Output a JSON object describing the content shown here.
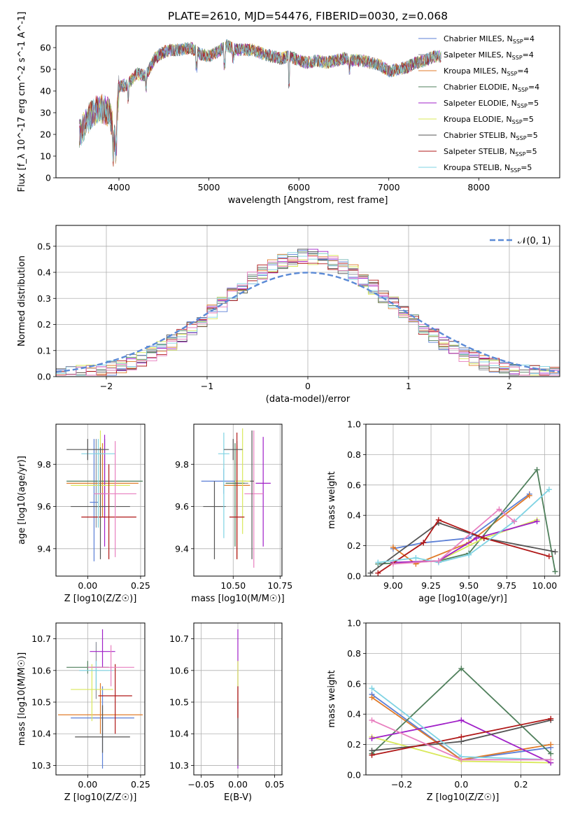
{
  "title": "PLATE=2610, MJD=54476, FIBERID=0030, z=0.068",
  "colors": {
    "Chabrier MILES": "#5b7fd6",
    "Salpeter MILES": "#8a8f9a",
    "Kroupa MILES": "#e07b2a",
    "Chabrier ELODIE": "#4f7f5b",
    "Salpeter ELODIE": "#a020c8",
    "Kroupa ELODIE": "#d9e85a",
    "Chabrier STELIB": "#555555",
    "Salpeter STELIB": "#b01818",
    "Kroupa STELIB": "#7fd3e3",
    "pink": "#e87fbf",
    "normal_curve": "#5b8ad6"
  },
  "chart_data": [
    {
      "id": "spectrum",
      "type": "line",
      "xlabel": "wavelength [Angstrom, rest frame]",
      "ylabel": "Flux [f_λ 10^-17 erg cm^-2 s^-1 A^-1]",
      "xlim": [
        3300,
        8900
      ],
      "ylim": [
        0,
        70
      ],
      "xticks": [
        "4000",
        "5000",
        "6000",
        "7000",
        "8000"
      ],
      "yticks": [
        "0",
        "10",
        "20",
        "30",
        "40",
        "50",
        "60"
      ],
      "legend": "top-right",
      "x_start": 3560,
      "x_end": 7580,
      "continuum": [
        [
          3560,
          20
        ],
        [
          3700,
          30
        ],
        [
          3800,
          32
        ],
        [
          3900,
          30
        ],
        [
          3960,
          16
        ],
        [
          4000,
          42
        ],
        [
          4100,
          43
        ],
        [
          4200,
          48
        ],
        [
          4300,
          47
        ],
        [
          4400,
          55
        ],
        [
          4500,
          58
        ],
        [
          4600,
          59
        ],
        [
          4700,
          59
        ],
        [
          4800,
          60
        ],
        [
          4900,
          57
        ],
        [
          5000,
          56
        ],
        [
          5100,
          58
        ],
        [
          5200,
          61
        ],
        [
          5300,
          59
        ],
        [
          5400,
          59
        ],
        [
          5500,
          59
        ],
        [
          5600,
          57
        ],
        [
          5700,
          56
        ],
        [
          5800,
          55
        ],
        [
          5900,
          56
        ],
        [
          6000,
          54
        ],
        [
          6100,
          53
        ],
        [
          6200,
          54
        ],
        [
          6300,
          53
        ],
        [
          6400,
          54
        ],
        [
          6500,
          55
        ],
        [
          6600,
          54
        ],
        [
          6700,
          54
        ],
        [
          6800,
          53
        ],
        [
          6900,
          52
        ],
        [
          7000,
          49
        ],
        [
          7100,
          50
        ],
        [
          7200,
          51
        ],
        [
          7300,
          53
        ],
        [
          7400,
          54
        ],
        [
          7500,
          56
        ],
        [
          7580,
          56
        ]
      ],
      "absorption": [
        [
          3934,
          9
        ],
        [
          3968,
          8
        ],
        [
          4102,
          6
        ],
        [
          4300,
          5
        ],
        [
          4861,
          7
        ],
        [
          5175,
          8
        ],
        [
          5270,
          4
        ],
        [
          5890,
          12
        ],
        [
          6563,
          4
        ]
      ],
      "series": [
        {
          "name": "Chabrier MILES, N_SSP=4"
        },
        {
          "name": "Salpeter MILES, N_SSP=4"
        },
        {
          "name": "Kroupa MILES, N_SSP=4"
        },
        {
          "name": "Chabrier ELODIE, N_SSP=4"
        },
        {
          "name": "Salpeter ELODIE, N_SSP=5"
        },
        {
          "name": "Kroupa ELODIE, N_SSP=5"
        },
        {
          "name": "Chabrier STELIB, N_SSP=5"
        },
        {
          "name": "Salpeter STELIB, N_SSP=5"
        },
        {
          "name": "Kroupa STELIB, N_SSP=5"
        }
      ]
    },
    {
      "id": "residuals",
      "type": "line",
      "xlabel": "(data-model)/error",
      "ylabel": "Normed distribution",
      "xlim": [
        -2.5,
        2.5
      ],
      "ylim": [
        0,
        0.58
      ],
      "xticks": [
        "−2",
        "−1",
        "0",
        "1",
        "2"
      ],
      "yticks": [
        "0.0",
        "0.1",
        "0.2",
        "0.3",
        "0.4",
        "0.5"
      ],
      "grid": true,
      "legend": "top-right",
      "normal_label": "𝒩(0, 1)",
      "bin_width": 0.1
    },
    {
      "id": "z-age",
      "type": "scatter",
      "xlabel": "Z [log10(Z/Z☉)]",
      "ylabel": "age [log10(age/yr)]",
      "xlim": [
        -0.15,
        0.27
      ],
      "ylim": [
        9.27,
        9.99
      ],
      "xticks": [
        "0.00",
        "0.25"
      ],
      "yticks": [
        "9.4",
        "9.6",
        "9.8"
      ],
      "grid": true,
      "points": [
        {
          "x": 0.03,
          "xerr": 0.02,
          "y": 9.62,
          "yerr": [
            0.28,
            0.3
          ],
          "color": "Chabrier MILES"
        },
        {
          "x": 0.04,
          "xerr": 0.03,
          "y": 9.7,
          "yerr": [
            0.2,
            0.22
          ],
          "color": "Salpeter MILES"
        },
        {
          "x": 0.07,
          "xerr": 0.17,
          "y": 9.71,
          "yerr": [
            0.16,
            0.19
          ],
          "color": "Kroupa MILES"
        },
        {
          "x": 0.08,
          "xerr": 0.18,
          "y": 9.72,
          "yerr": [
            0.17,
            0.2
          ],
          "color": "Chabrier ELODIE"
        },
        {
          "x": 0.08,
          "xerr": 0.02,
          "y": 9.66,
          "yerr": [
            0.25,
            0.28
          ],
          "color": "Salpeter ELODIE"
        },
        {
          "x": 0.06,
          "xerr": 0.14,
          "y": 9.7,
          "yerr": [
            0.2,
            0.26
          ],
          "color": "Kroupa ELODIE"
        },
        {
          "x": 0.06,
          "xerr": 0.14,
          "y": 9.6,
          "yerr": [
            0.25,
            0.28
          ],
          "color": "Chabrier STELIB"
        },
        {
          "x": 0.1,
          "xerr": 0.13,
          "y": 9.55,
          "yerr": [
            0.2,
            0.25
          ],
          "color": "Salpeter STELIB"
        },
        {
          "x": 0.05,
          "xerr": 0.08,
          "y": 9.85,
          "yerr": [
            0.35,
            0.07
          ],
          "color": "Kroupa STELIB"
        },
        {
          "x": 0.13,
          "xerr": 0.1,
          "y": 9.66,
          "yerr": [
            0.3,
            0.25
          ],
          "color": "pink"
        },
        {
          "x": 0.0,
          "xerr": 0.1,
          "y": 9.87,
          "yerr": [
            0.05,
            0.05
          ],
          "color": "Chabrier STELIB"
        }
      ]
    },
    {
      "id": "mass-age",
      "type": "scatter",
      "xlabel": "mass [log10(M/M☉)]",
      "ylabel": "",
      "xlim": [
        10.29,
        10.76
      ],
      "ylim": [
        9.27,
        9.99
      ],
      "xticks": [
        "10.50",
        "10.75"
      ],
      "yticks": [
        "9.4",
        "9.6",
        "9.8"
      ],
      "grid": true,
      "points": [
        {
          "x": 10.45,
          "xerr": 0.12,
          "y": 9.72,
          "yerr": [
            0.06,
            0.06
          ],
          "color": "Chabrier MILES"
        },
        {
          "x": 10.52,
          "xerr": 0.06,
          "y": 9.71,
          "yerr": [
            0.15,
            0.2
          ],
          "color": "Salpeter MILES"
        },
        {
          "x": 10.52,
          "xerr": 0.07,
          "y": 9.7,
          "yerr": [
            0.35,
            0.19
          ],
          "color": "Kroupa MILES"
        },
        {
          "x": 10.51,
          "xerr": 0.05,
          "y": 9.71,
          "yerr": [
            0.3,
            0.19
          ],
          "color": "Chabrier ELODIE"
        },
        {
          "x": 10.66,
          "xerr": 0.04,
          "y": 9.71,
          "yerr": [
            0.3,
            0.22
          ],
          "color": "Salpeter ELODIE"
        },
        {
          "x": 10.55,
          "xerr": 0.04,
          "y": 9.72,
          "yerr": [
            0.25,
            0.25
          ],
          "color": "Kroupa ELODIE"
        },
        {
          "x": 10.4,
          "xerr": 0.06,
          "y": 9.6,
          "yerr": [
            0.25,
            0.12
          ],
          "color": "Chabrier STELIB"
        },
        {
          "x": 10.52,
          "xerr": 0.04,
          "y": 9.55,
          "yerr": [
            0.2,
            0.4
          ],
          "color": "Salpeter STELIB"
        },
        {
          "x": 10.45,
          "xerr": 0.03,
          "y": 9.85,
          "yerr": [
            0.4,
            0.1
          ],
          "color": "Kroupa STELIB"
        },
        {
          "x": 10.61,
          "xerr": 0.05,
          "y": 9.66,
          "yerr": [
            0.35,
            0.3
          ],
          "color": "pink"
        },
        {
          "x": 10.6,
          "xerr": 0.01,
          "y": 9.72,
          "yerr": [
            0.37,
            0.24
          ],
          "color": "Chabrier STELIB"
        },
        {
          "x": 10.5,
          "xerr": 0.05,
          "y": 9.87,
          "yerr": [
            0.05,
            0.05
          ],
          "color": "Chabrier STELIB"
        }
      ]
    },
    {
      "id": "age-weight",
      "type": "line",
      "xlabel": "age [log10(age/yr)]",
      "ylabel": "mass weight",
      "xlim": [
        8.82,
        10.1
      ],
      "ylim": [
        0,
        1
      ],
      "xticks": [
        "9.00",
        "9.25",
        "9.50",
        "9.75",
        "10.00"
      ],
      "yticks": [
        "0.0",
        "0.2",
        "0.4",
        "0.6",
        "0.8",
        "1.0"
      ],
      "grid": true,
      "series": [
        {
          "color": "Chabrier MILES",
          "x": [
            9.0,
            9.2,
            9.5,
            9.9
          ],
          "y": [
            0.18,
            0.22,
            0.25,
            0.54
          ]
        },
        {
          "color": "Kroupa MILES",
          "x": [
            9.0,
            9.15,
            9.5,
            9.9
          ],
          "y": [
            0.19,
            0.08,
            0.22,
            0.53
          ]
        },
        {
          "color": "Chabrier ELODIE",
          "x": [
            8.9,
            9.3,
            9.5,
            9.95,
            10.07
          ],
          "y": [
            0.08,
            0.1,
            0.15,
            0.7,
            0.03
          ]
        },
        {
          "color": "Kroupa ELODIE",
          "x": [
            9.0,
            9.3,
            9.6,
            9.95
          ],
          "y": [
            0.09,
            0.1,
            0.25,
            0.37
          ]
        },
        {
          "color": "Salpeter ELODIE",
          "x": [
            9.0,
            9.3,
            9.55,
            9.95
          ],
          "y": [
            0.09,
            0.1,
            0.25,
            0.36
          ]
        },
        {
          "color": "Chabrier STELIB",
          "x": [
            8.85,
            9.3,
            9.6,
            10.07
          ],
          "y": [
            0.02,
            0.35,
            0.25,
            0.16
          ]
        },
        {
          "color": "Salpeter STELIB",
          "x": [
            8.9,
            9.2,
            9.3,
            9.6,
            10.03
          ],
          "y": [
            0.02,
            0.22,
            0.37,
            0.25,
            0.13
          ]
        },
        {
          "color": "Kroupa STELIB",
          "x": [
            8.9,
            9.15,
            9.3,
            9.5,
            9.8,
            10.03
          ],
          "y": [
            0.09,
            0.12,
            0.09,
            0.14,
            0.36,
            0.57
          ]
        },
        {
          "color": "pink",
          "x": [
            9.0,
            9.3,
            9.7,
            9.8
          ],
          "y": [
            0.08,
            0.1,
            0.44,
            0.36
          ]
        }
      ]
    },
    {
      "id": "z-mass",
      "type": "scatter",
      "xlabel": "Z [log10(Z/Z☉)]",
      "ylabel": "mass [log10(M/M☉)]",
      "xlim": [
        -0.15,
        0.27
      ],
      "ylim": [
        10.27,
        10.75
      ],
      "xticks": [
        "0.00",
        "0.25"
      ],
      "yticks": [
        "10.3",
        "10.4",
        "10.5",
        "10.6",
        "10.7"
      ],
      "grid": true,
      "points": [
        {
          "x": 0.07,
          "xerr": 0.15,
          "y": 10.45,
          "yerr": [
            0.16,
            0.1
          ],
          "color": "Chabrier MILES"
        },
        {
          "x": 0.04,
          "xerr": 0.02,
          "y": 10.61,
          "yerr": [
            0.1,
            0.08
          ],
          "color": "Salpeter MILES"
        },
        {
          "x": 0.06,
          "xerr": 0.2,
          "y": 10.46,
          "yerr": [
            0.06,
            0.1
          ],
          "color": "Kroupa MILES"
        },
        {
          "x": 0.0,
          "xerr": 0.1,
          "y": 10.61,
          "yerr": [
            0.02,
            0.02
          ],
          "color": "Chabrier ELODIE"
        },
        {
          "x": 0.07,
          "xerr": 0.06,
          "y": 10.66,
          "yerr": [
            0.05,
            0.07
          ],
          "color": "Salpeter ELODIE"
        },
        {
          "x": 0.02,
          "xerr": 0.1,
          "y": 10.54,
          "yerr": [
            0.1,
            0.08
          ],
          "color": "Kroupa ELODIE"
        },
        {
          "x": 0.07,
          "xerr": 0.13,
          "y": 10.39,
          "yerr": [
            0.05,
            0.1
          ],
          "color": "Chabrier STELIB"
        },
        {
          "x": 0.13,
          "xerr": 0.08,
          "y": 10.52,
          "yerr": [
            0.12,
            0.1
          ],
          "color": "Salpeter STELIB"
        },
        {
          "x": 0.04,
          "xerr": 0.08,
          "y": 10.6,
          "yerr": [
            0.06,
            0.03
          ],
          "color": "Kroupa STELIB"
        },
        {
          "x": 0.11,
          "xerr": 0.11,
          "y": 10.61,
          "yerr": [
            0.06,
            0.07
          ],
          "color": "pink"
        }
      ]
    },
    {
      "id": "ebv-mass",
      "type": "scatter",
      "xlabel": "E(B-V)",
      "ylabel": "",
      "xlim": [
        -0.06,
        0.06
      ],
      "ylim": [
        10.27,
        10.75
      ],
      "xticks": [
        "−0.05",
        "0.00",
        "0.05"
      ],
      "yticks": [
        "10.3",
        "10.4",
        "10.5",
        "10.6",
        "10.7"
      ],
      "grid": true,
      "points": [
        {
          "x": 0.0,
          "xerr": 0.0,
          "y": 10.5,
          "yerr": [
            0.21,
            0.23
          ],
          "color": "Salpeter ELODIE"
        },
        {
          "x": 0.0,
          "xerr": 0.0,
          "y": 10.46,
          "yerr": [
            0.14,
            0.17
          ],
          "color": "Kroupa ELODIE"
        },
        {
          "x": 0.0,
          "xerr": 0.0,
          "y": 10.4,
          "yerr": [
            0.1,
            0.1
          ],
          "color": "Chabrier STELIB"
        },
        {
          "x": 0.0,
          "xerr": 0.0,
          "y": 10.5,
          "yerr": [
            0.05,
            0.05
          ],
          "color": "Salpeter STELIB"
        }
      ]
    },
    {
      "id": "z-weight",
      "type": "line",
      "xlabel": "Z [log10(Z/Z☉)]",
      "ylabel": "mass weight",
      "xlim": [
        -0.32,
        0.33
      ],
      "ylim": [
        0,
        1
      ],
      "xticks": [
        "−0.2",
        "0.0",
        "0.2"
      ],
      "yticks": [
        "0.0",
        "0.2",
        "0.4",
        "0.6",
        "0.8",
        "1.0"
      ],
      "grid": true,
      "series": [
        {
          "color": "Chabrier MILES",
          "x": [
            -0.3,
            0.0,
            0.3
          ],
          "y": [
            0.53,
            0.1,
            0.18
          ]
        },
        {
          "color": "Kroupa MILES",
          "x": [
            -0.3,
            0.0,
            0.3
          ],
          "y": [
            0.51,
            0.1,
            0.2
          ]
        },
        {
          "color": "Chabrier ELODIE",
          "x": [
            -0.3,
            0.0,
            0.3
          ],
          "y": [
            0.14,
            0.7,
            0.14
          ]
        },
        {
          "color": "Kroupa ELODIE",
          "x": [
            -0.3,
            0.0,
            0.3
          ],
          "y": [
            0.25,
            0.09,
            0.08
          ]
        },
        {
          "color": "Salpeter ELODIE",
          "x": [
            -0.3,
            0.0,
            0.3
          ],
          "y": [
            0.24,
            0.36,
            0.08
          ]
        },
        {
          "color": "Chabrier STELIB",
          "x": [
            -0.3,
            0.0,
            0.3
          ],
          "y": [
            0.16,
            0.22,
            0.36
          ]
        },
        {
          "color": "Salpeter STELIB",
          "x": [
            -0.3,
            0.0,
            0.3
          ],
          "y": [
            0.13,
            0.25,
            0.37
          ]
        },
        {
          "color": "Kroupa STELIB",
          "x": [
            -0.3,
            0.0,
            0.3
          ],
          "y": [
            0.57,
            0.12,
            0.1
          ]
        },
        {
          "color": "pink",
          "x": [
            -0.3,
            0.0,
            0.3
          ],
          "y": [
            0.36,
            0.1,
            0.1
          ]
        }
      ]
    }
  ]
}
